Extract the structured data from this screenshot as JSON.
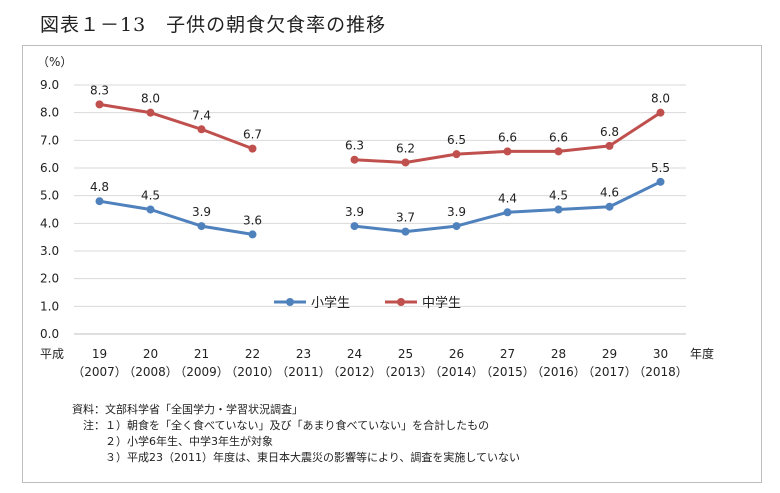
{
  "title": "図表１－13　子供の朝食欠食率の推移",
  "chart_data": {
    "type": "line",
    "unit_label": "（%）",
    "ylim": [
      0,
      9
    ],
    "yticks": [
      "0.0",
      "1.0",
      "2.0",
      "3.0",
      "4.0",
      "5.0",
      "6.0",
      "7.0",
      "8.0",
      "9.0"
    ],
    "x_prefix": "平成",
    "x_suffix": "年度",
    "categories": [
      "19",
      "20",
      "21",
      "22",
      "23",
      "24",
      "25",
      "26",
      "27",
      "28",
      "29",
      "30"
    ],
    "categories_sub": [
      "（2007）",
      "（2008）",
      "（2009）",
      "（2010）",
      "（2011）",
      "（2012）",
      "（2013）",
      "（2014）",
      "（2015）",
      "（2016）",
      "（2017）",
      "（2018）"
    ],
    "series": [
      {
        "name": "小学生",
        "color": "#4f81bd",
        "values": [
          4.8,
          4.5,
          3.9,
          3.6,
          null,
          3.9,
          3.7,
          3.9,
          4.4,
          4.5,
          4.6,
          5.5
        ]
      },
      {
        "name": "中学生",
        "color": "#c0504d",
        "values": [
          8.3,
          8.0,
          7.4,
          6.7,
          null,
          6.3,
          6.2,
          6.5,
          6.6,
          6.6,
          6.8,
          8.0
        ]
      }
    ],
    "grid": true,
    "legend_position": "center"
  },
  "notes": [
    "資料：文部科学省「全国学力・学習状況調査」",
    "　注：１）朝食を「全く食べていない」及び「あまり食べていない」を合計したもの",
    "　　　２）小学6年生、中学3年生が対象",
    "　　　３）平成23（2011）年度は、東日本大震災の影響等により、調査を実施していない"
  ]
}
